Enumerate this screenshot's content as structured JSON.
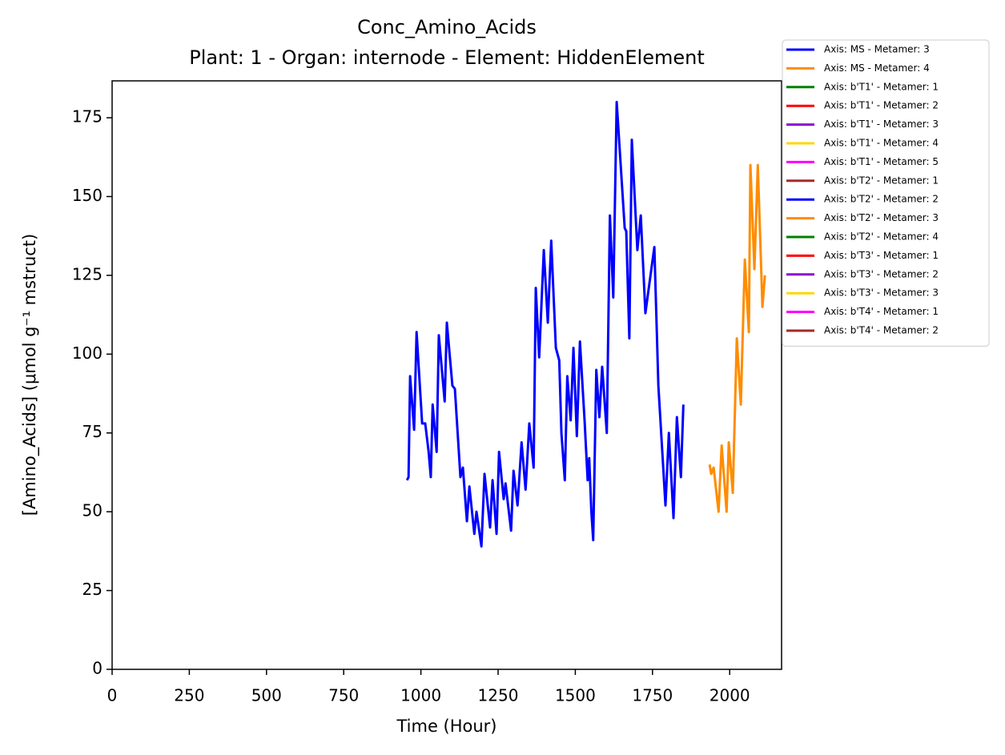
{
  "chart_data": {
    "type": "line",
    "title": "Conc_Amino_Acids",
    "subtitle": "Plant: 1 - Organ: internode - Element: HiddenElement",
    "x_label": "Time (Hour)",
    "y_label": "[Amino_Acids] (μmol g⁻¹ mstruct)",
    "xlim": [
      0,
      2168
    ],
    "ylim": [
      0,
      186.7
    ],
    "xticks": [
      0,
      250,
      500,
      750,
      1000,
      1250,
      1500,
      1750,
      2000
    ],
    "yticks": [
      0,
      25,
      50,
      75,
      100,
      125,
      150,
      175
    ],
    "series": [
      {
        "name": "Axis: MS - Metamer: 3",
        "color": "#0000ff",
        "x": [
          955,
          960,
          965,
          978,
          986,
          1004,
          1014,
          1025,
          1032,
          1038,
          1051,
          1058,
          1077,
          1084,
          1102,
          1110,
          1128,
          1136,
          1149,
          1157,
          1173,
          1180,
          1196,
          1206,
          1224,
          1232,
          1245,
          1253,
          1268,
          1274,
          1292,
          1300,
          1313,
          1326,
          1339,
          1351,
          1365,
          1372,
          1383,
          1398,
          1411,
          1422,
          1437,
          1448,
          1455,
          1466,
          1474,
          1485,
          1494,
          1505,
          1515,
          1530,
          1540,
          1545,
          1552,
          1558,
          1568,
          1578,
          1587,
          1602,
          1612,
          1623,
          1634,
          1660,
          1665,
          1675,
          1683,
          1701,
          1712,
          1727,
          1756,
          1769,
          1792,
          1803,
          1818,
          1829,
          1842,
          1850
        ],
        "values": [
          60,
          61,
          93,
          76,
          107,
          78,
          78,
          69,
          61,
          84,
          69,
          106,
          85,
          110,
          90,
          89,
          61,
          64,
          47,
          58,
          43,
          50,
          39,
          62,
          45,
          60,
          43,
          69,
          54,
          59,
          44,
          63,
          52,
          72,
          57,
          78,
          64,
          121,
          99,
          133,
          110,
          136,
          102,
          98,
          75,
          60,
          93,
          79,
          102,
          74,
          104,
          79,
          60,
          67,
          50,
          41,
          95,
          80,
          96,
          75,
          144,
          118,
          180,
          140,
          139,
          105,
          168,
          133,
          144,
          113,
          134,
          90,
          52,
          75,
          48,
          80,
          61,
          84
        ]
      },
      {
        "name": "Axis: MS - Metamer: 4",
        "color": "#ff8c00",
        "x": [
          1935,
          1940,
          1948,
          1964,
          1974,
          1990,
          1997,
          2010,
          2023,
          2036,
          2049,
          2062,
          2067,
          2080,
          2091,
          2106,
          2114
        ],
        "values": [
          65,
          62,
          64,
          50,
          71,
          50,
          72,
          56,
          105,
          84,
          130,
          107,
          160,
          127,
          160,
          115,
          125
        ]
      },
      {
        "name": "Axis: b'T1' - Metamer: 1",
        "color": "#008000",
        "x": [],
        "values": []
      },
      {
        "name": "Axis: b'T1' - Metamer: 2",
        "color": "#ff0000",
        "x": [],
        "values": []
      },
      {
        "name": "Axis: b'T1' - Metamer: 3",
        "color": "#9400d3",
        "x": [],
        "values": []
      },
      {
        "name": "Axis: b'T1' - Metamer: 4",
        "color": "#ffd700",
        "x": [],
        "values": []
      },
      {
        "name": "Axis: b'T1' - Metamer: 5",
        "color": "#ff00ff",
        "x": [],
        "values": []
      },
      {
        "name": "Axis: b'T2' - Metamer: 1",
        "color": "#a52a2a",
        "x": [],
        "values": []
      },
      {
        "name": "Axis: b'T2' - Metamer: 2",
        "color": "#0000ff",
        "x": [],
        "values": []
      },
      {
        "name": "Axis: b'T2' - Metamer: 3",
        "color": "#ff8c00",
        "x": [],
        "values": []
      },
      {
        "name": "Axis: b'T2' - Metamer: 4",
        "color": "#008000",
        "x": [],
        "values": []
      },
      {
        "name": "Axis: b'T3' - Metamer: 1",
        "color": "#ff0000",
        "x": [],
        "values": []
      },
      {
        "name": "Axis: b'T3' - Metamer: 2",
        "color": "#9400d3",
        "x": [],
        "values": []
      },
      {
        "name": "Axis: b'T3' - Metamer: 3",
        "color": "#ffd700",
        "x": [],
        "values": []
      },
      {
        "name": "Axis: b'T4' - Metamer: 1",
        "color": "#ff00ff",
        "x": [],
        "values": []
      },
      {
        "name": "Axis: b'T4' - Metamer: 2",
        "color": "#a52a2a",
        "x": [],
        "values": []
      }
    ]
  }
}
